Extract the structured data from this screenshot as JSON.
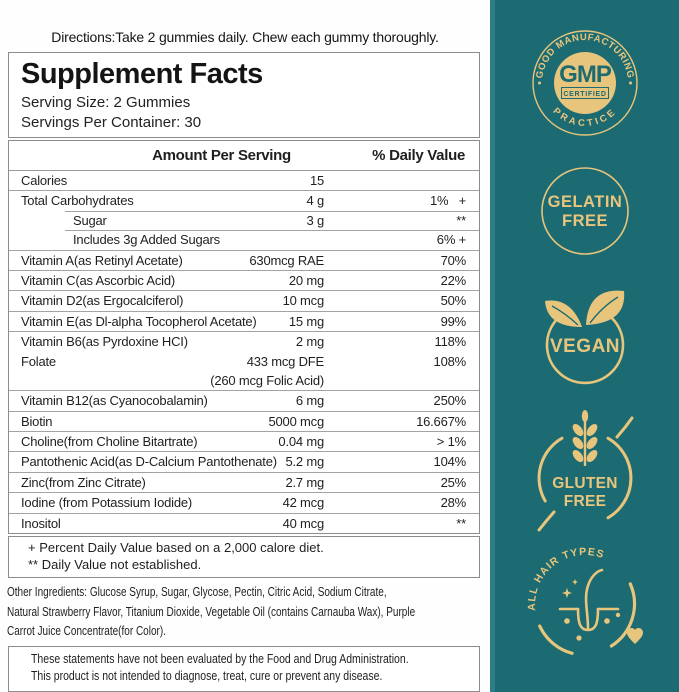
{
  "directions": "Directions:Take 2 gummies daily. Chew each gummy thoroughly.",
  "panel": {
    "title": "Supplement Facts",
    "serving_size": "Serving Size: 2 Gummies",
    "servings_per_container": "Servings Per Container: 30"
  },
  "table": {
    "col_amount": "Amount Per Serving",
    "col_dv": "% Daily Value",
    "rows": [
      {
        "name": "Calories",
        "amount": "15",
        "dv": "",
        "indent": false,
        "sep": "none"
      },
      {
        "name": "Total Carbohydrates",
        "amount": "4 g",
        "dv": "1%   +",
        "indent": false,
        "sep": "full"
      },
      {
        "name": "Sugar",
        "amount": "3 g",
        "dv": "**",
        "indent": true,
        "sep": "part"
      },
      {
        "name": "Includes 3g Added Sugars",
        "amount": "",
        "dv": "6% +",
        "indent": true,
        "sep": "part"
      },
      {
        "name": "Vitamin A(as Retinyl Acetate)",
        "amount": "630mcg RAE",
        "dv": "70%",
        "indent": false,
        "sep": "full"
      },
      {
        "name": "Vitamin C(as Ascorbic Acid)",
        "amount": "20 mg",
        "dv": "22%",
        "indent": false,
        "sep": "full"
      },
      {
        "name": "Vitamin D2(as Ergocalciferol)",
        "amount": "10 mcg",
        "dv": "50%",
        "indent": false,
        "sep": "full"
      },
      {
        "name": "Vitamin E(as Dl-alpha Tocopherol Acetate)",
        "amount": "15 mg",
        "dv": "99%",
        "indent": false,
        "sep": "full"
      },
      {
        "name": "Vitamin B6(as Pyrdoxine HCI)",
        "amount": "2 mg",
        "dv": "118%",
        "indent": false,
        "sep": "full"
      },
      {
        "name": "Folate",
        "amount": "433 mcg DFE",
        "dv": "108%",
        "indent": false,
        "sep": "none"
      },
      {
        "name": "",
        "amount": "(260 mcg Folic Acid)",
        "dv": "",
        "indent": false,
        "sep": "none"
      },
      {
        "name": "Vitamin B12(as Cyanocobalamin)",
        "amount": "6 mg",
        "dv": "250%",
        "indent": false,
        "sep": "full"
      },
      {
        "name": "Biotin",
        "amount": "5000 mcg",
        "dv": "16.667%",
        "indent": false,
        "sep": "full"
      },
      {
        "name": "Choline(from Choline Bitartrate)",
        "amount": "0.04 mg",
        "dv": "> 1%",
        "indent": false,
        "sep": "full"
      },
      {
        "name": "Pantothenic Acid(as D-Calcium Pantothenate)",
        "amount": "5.2 mg",
        "dv": "104%",
        "indent": false,
        "sep": "full"
      },
      {
        "name": "Zinc(from Zinc Citrate)",
        "amount": "2.7 mg",
        "dv": "25%",
        "indent": false,
        "sep": "full"
      },
      {
        "name": "Iodine (from Potassium Iodide)",
        "amount": "42 mcg",
        "dv": "28%",
        "indent": false,
        "sep": "full"
      },
      {
        "name": "Inositol",
        "amount": "40 mcg",
        "dv": "**",
        "indent": false,
        "sep": "full"
      }
    ]
  },
  "footnotes": [
    "+ Percent Daily Value based on a 2,000 calore diet.",
    "** Daily Value not established."
  ],
  "other_ingredients_lines": [
    "Other Ingredients: Glucose Syrup, Sugar, Glycose, Pectin, Citric Acid, Sodium Citrate,",
    "Natural Strawberry Flavor, Titanium Dioxide, Vegetable Oil (contains Carnauba Wax), Purple",
    "Carrot Juice Concentrate(for Color)."
  ],
  "disclaimer": [
    "These statements have not been evaluated by the Food and Drug Administration.",
    "This product is not intended to diagnose, treat, cure or prevent any disease."
  ],
  "badges": {
    "gmp": {
      "arc_top": "GOOD MANUFACTURING",
      "arc_bottom": "PRACTICE",
      "center": "GMP",
      "sub": "CERTIFIED"
    },
    "gelatin_free": {
      "line1": "GELATIN",
      "line2": "FREE"
    },
    "vegan": {
      "label": "VEGAN"
    },
    "gluten_free": {
      "line1": "GLUTEN",
      "line2": "FREE"
    },
    "all_hair_types": {
      "arc": "ALL HAIR TYPES"
    }
  },
  "colors": {
    "teal": "#1d6b72",
    "teal_light": "#2e7d85",
    "gold": "#e8c57c"
  }
}
